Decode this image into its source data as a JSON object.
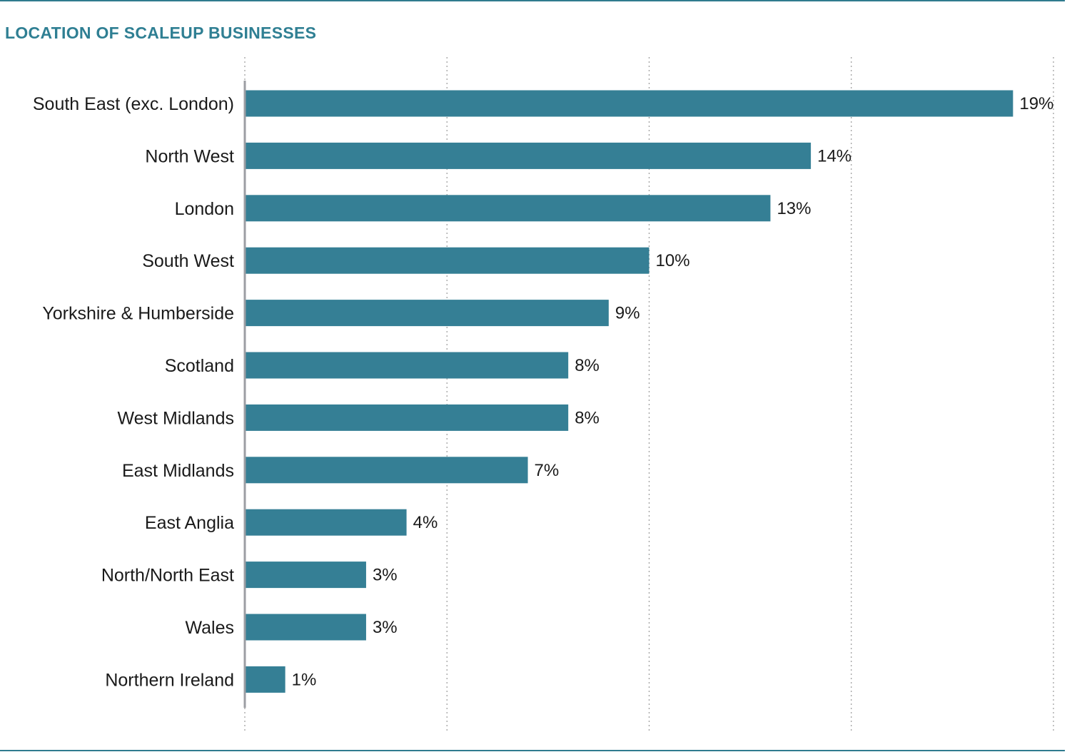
{
  "page": {
    "title": "LOCATION OF SCALEUP BUSINESSES",
    "title_color": "#2f7f93",
    "rule_color": "#2f7b8e"
  },
  "chart_data": {
    "type": "bar",
    "orientation": "horizontal",
    "title": "LOCATION OF SCALEUP BUSINESSES",
    "xlabel": "",
    "ylabel": "",
    "xlim": [
      0,
      20
    ],
    "grid": true,
    "grid_interval": 5,
    "legend": "none",
    "bar_color": "#357f95",
    "unit": "%",
    "categories": [
      "South East (exc. London)",
      "North West",
      "London",
      "South West",
      "Yorkshire & Humberside",
      "Scotland",
      "West Midlands",
      "East Midlands",
      "East Anglia",
      "North/North East",
      "Wales",
      "Northern Ireland"
    ],
    "values": [
      19,
      14,
      13,
      10,
      9,
      8,
      8,
      7,
      4,
      3,
      3,
      1
    ],
    "value_labels": [
      "19%",
      "14%",
      "13%",
      "10%",
      "9%",
      "8%",
      "8%",
      "7%",
      "4%",
      "3%",
      "3%",
      "1%"
    ]
  }
}
